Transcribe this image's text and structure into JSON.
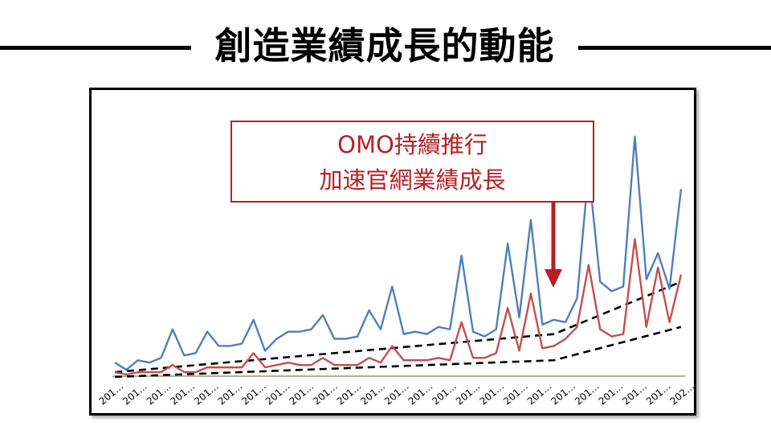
{
  "page": {
    "title": "創造業績成長的動能"
  },
  "annotation": {
    "line1": "OMO持續推行",
    "line2": "加速官網業績成長"
  },
  "colors": {
    "series_blue": "#4f7fbb",
    "series_red": "#c0504d",
    "annotation": "#b42025",
    "trend": "#000000"
  },
  "chart_data": {
    "type": "line",
    "title": "",
    "xlabel": "",
    "ylabel": "",
    "x_tick_labels": [
      "201…",
      "201…",
      "201…",
      "201…",
      "201…",
      "201…",
      "201…",
      "201…",
      "201…",
      "201…",
      "201…",
      "201…",
      "201…",
      "201…",
      "201…",
      "201…",
      "201…",
      "201…",
      "201…",
      "201…",
      "201…",
      "201…",
      "201…",
      "201…",
      "202…"
    ],
    "x": [
      0,
      1,
      2,
      3,
      4,
      5,
      6,
      7,
      8,
      9,
      10,
      11,
      12,
      13,
      14,
      15,
      16,
      17,
      18,
      19,
      20,
      21,
      22,
      23,
      24,
      25,
      26,
      27,
      28,
      29,
      30,
      31,
      32,
      33,
      34,
      35,
      36,
      37,
      38,
      39,
      40,
      41,
      42,
      43,
      44,
      45,
      46,
      47,
      48,
      49
    ],
    "ylim": [
      0,
      100
    ],
    "grid": false,
    "legend": "none",
    "series": [
      {
        "values": [
          5,
          2,
          6,
          5,
          7,
          19,
          8,
          9,
          18,
          12,
          12,
          13,
          23,
          10,
          15,
          18,
          18,
          19,
          25,
          15,
          15,
          16,
          27,
          19,
          37,
          17,
          18,
          17,
          20,
          19,
          50,
          18,
          16,
          19,
          55,
          24,
          65,
          21,
          23,
          22,
          32,
          86,
          39,
          35,
          37,
          100,
          40,
          51,
          36,
          78
        ]
      },
      {
        "values": [
          1,
          0,
          1,
          1,
          1,
          4,
          1,
          1,
          3,
          3,
          3,
          3,
          9,
          3,
          4,
          5,
          4,
          4,
          7,
          4,
          4,
          4,
          7,
          5,
          12,
          6,
          6,
          6,
          7,
          6,
          22,
          7,
          7,
          9,
          28,
          10,
          34,
          11,
          12,
          15,
          20,
          46,
          19,
          16,
          17,
          57,
          20,
          45,
          22,
          42
        ]
      }
    ],
    "trendlines": [
      {
        "x": [
          0,
          38,
          49
        ],
        "y": [
          1,
          17,
          39
        ]
      },
      {
        "x": [
          0,
          38,
          49
        ],
        "y": [
          -1,
          6,
          20
        ]
      }
    ]
  }
}
